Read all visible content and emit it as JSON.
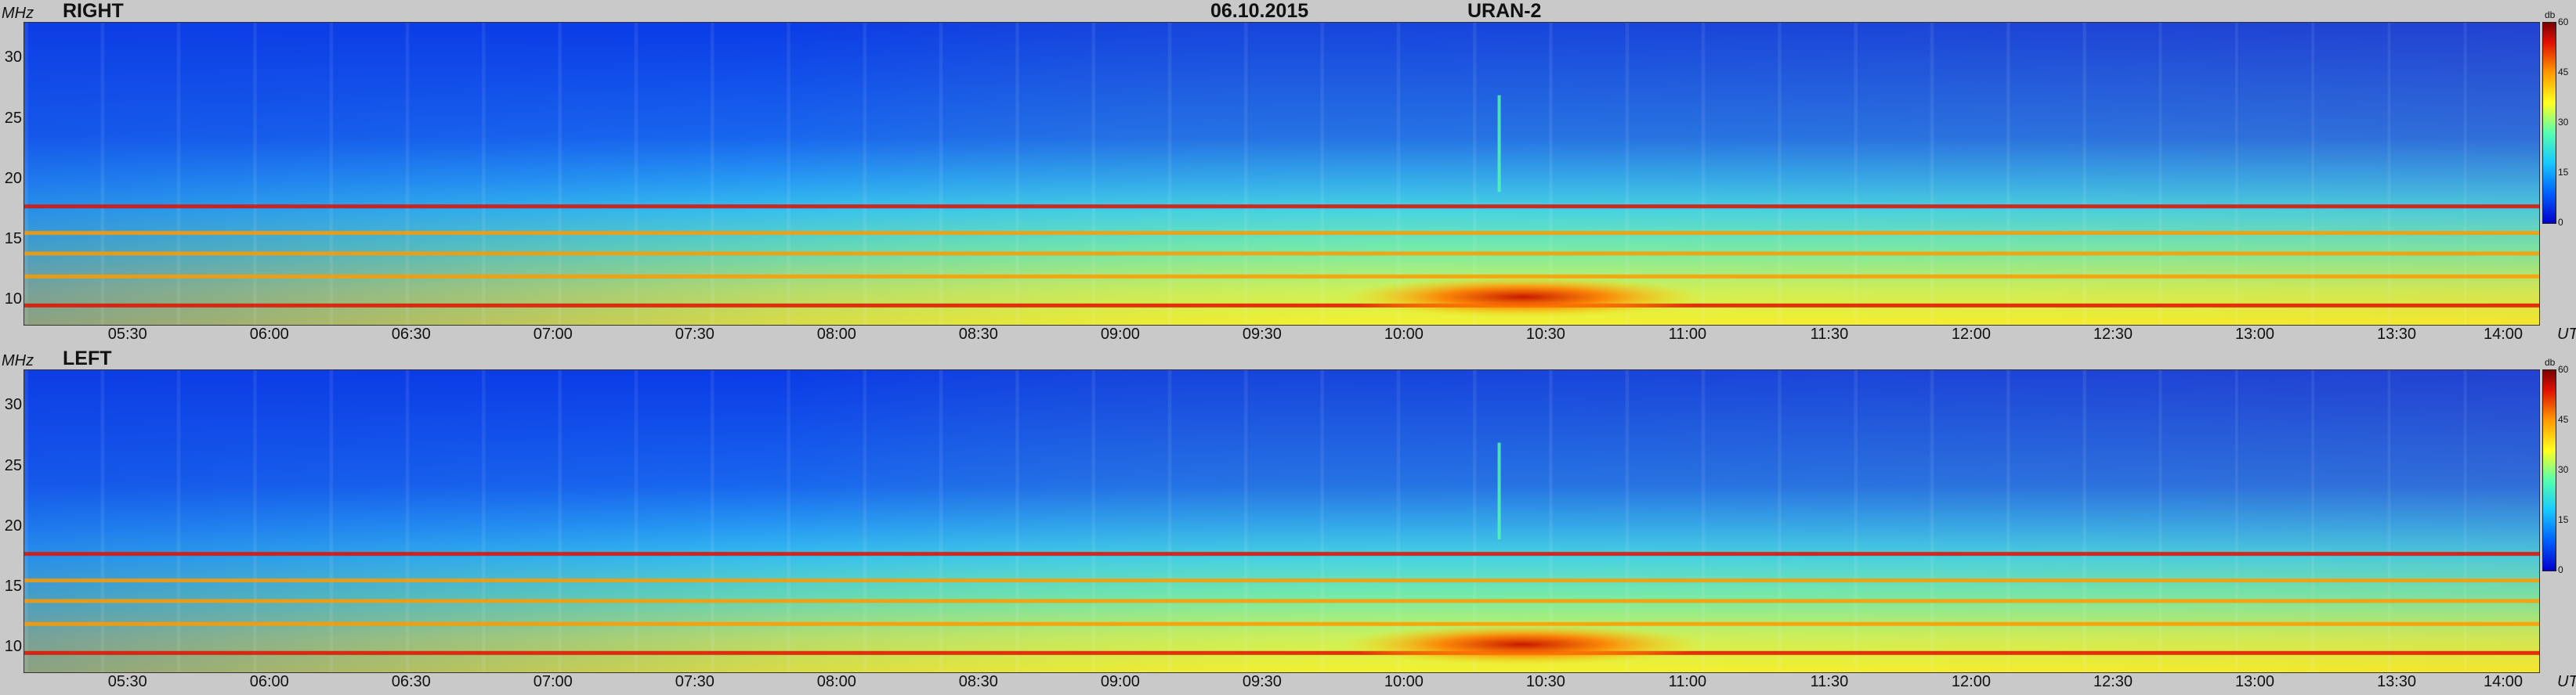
{
  "header": {
    "date": "06.10.2015",
    "instrument": "URAN-2"
  },
  "panels": [
    {
      "label": "RIGHT"
    },
    {
      "label": "LEFT"
    }
  ],
  "axes": {
    "y_unit": "MHz",
    "x_unit": "UT",
    "y_ticks": [
      "30",
      "25",
      "20",
      "15",
      "10"
    ],
    "x_ticks": [
      "05:30",
      "06:00",
      "06:30",
      "07:00",
      "07:30",
      "08:00",
      "08:30",
      "09:00",
      "09:30",
      "10:00",
      "10:30",
      "11:00",
      "11:30",
      "12:00",
      "12:30",
      "13:00",
      "13:30",
      "14:00"
    ]
  },
  "colorbar": {
    "unit": "db",
    "ticks": [
      "60",
      "45",
      "30",
      "15",
      "0"
    ],
    "colors": [
      "#0000cc",
      "#0060ff",
      "#18c8ff",
      "#55ffb0",
      "#ffff20",
      "#ff9a00",
      "#e01000",
      "#7a0000"
    ]
  },
  "chart_data": [
    {
      "type": "heatmap",
      "title": "RIGHT",
      "xlabel": "UT",
      "ylabel": "MHz",
      "xlim": [
        "05:08",
        "14:00"
      ],
      "ylim": [
        8,
        33
      ],
      "zlabel": "db",
      "zlim": [
        0,
        60
      ],
      "features": [
        {
          "kind": "band",
          "freq_mhz": 17.8,
          "level_db": 50
        },
        {
          "kind": "band",
          "freq_mhz": 15.6,
          "level_db": 45
        },
        {
          "kind": "band",
          "freq_mhz": 13.9,
          "level_db": 40
        },
        {
          "kind": "band",
          "freq_mhz": 12.0,
          "level_db": 45
        },
        {
          "kind": "band",
          "freq_mhz": 9.6,
          "level_db": 50
        },
        {
          "kind": "burst",
          "time": "10:25",
          "freq_mhz": 10.3,
          "level_db": 55
        },
        {
          "kind": "spike",
          "time": "10:20",
          "level_db": 25
        }
      ]
    },
    {
      "type": "heatmap",
      "title": "LEFT",
      "xlabel": "UT",
      "ylabel": "MHz",
      "xlim": [
        "05:08",
        "14:00"
      ],
      "ylim": [
        8,
        33
      ],
      "zlabel": "db",
      "zlim": [
        0,
        60
      ],
      "features": [
        {
          "kind": "band",
          "freq_mhz": 17.8,
          "level_db": 50
        },
        {
          "kind": "band",
          "freq_mhz": 15.6,
          "level_db": 45
        },
        {
          "kind": "band",
          "freq_mhz": 13.9,
          "level_db": 40
        },
        {
          "kind": "band",
          "freq_mhz": 12.0,
          "level_db": 45
        },
        {
          "kind": "band",
          "freq_mhz": 9.6,
          "level_db": 50
        },
        {
          "kind": "burst",
          "time": "10:25",
          "freq_mhz": 10.3,
          "level_db": 55
        },
        {
          "kind": "spike",
          "time": "10:20",
          "level_db": 25
        }
      ]
    }
  ]
}
